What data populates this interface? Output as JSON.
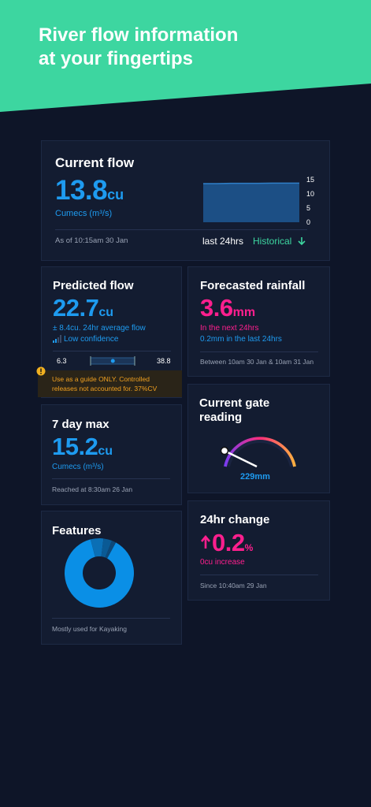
{
  "header": {
    "line1": "River flow information",
    "line2": "at your fingertips"
  },
  "current_flow": {
    "title": "Current flow",
    "value": "13.8",
    "unit": "cu",
    "unit_label": "Cumecs (m³/s)",
    "chart": {
      "type": "area",
      "ylim": [
        0,
        15
      ],
      "yticks": [
        15,
        10,
        5,
        0
      ],
      "color": "#1c4f85",
      "values": [
        13.6,
        13.6,
        13.7,
        13.7,
        13.7,
        13.8,
        13.8,
        13.8
      ]
    },
    "as_of": "As of 10:15am 30 Jan",
    "range": "last 24hrs",
    "historical": "Historical"
  },
  "predicted_flow": {
    "title": "Predicted flow",
    "value": "22.7",
    "unit": "cu",
    "average": "± 8.4cu. 24hr average flow",
    "confidence": "Low confidence",
    "range_min": "6.3",
    "range_max": "38.8",
    "warning": [
      "Use as a guide ONLY. Controlled",
      "releases not accounted for. 37%CV"
    ]
  },
  "forecasted_rainfall": {
    "title": "Forecasted rainfall",
    "value": "3.6",
    "unit": "mm",
    "next": "In the next 24hrs",
    "last": "0.2mm in the last 24hrs",
    "period": "Between 10am 30 Jan & 10am 31 Jan"
  },
  "seven_day_max": {
    "title": "7 day max",
    "value": "15.2",
    "unit": "cu",
    "unit_label": "Cumecs (m³/s)",
    "reached": "Reached at 8:30am 26 Jan"
  },
  "gate_reading": {
    "title": [
      "Current gate",
      "reading"
    ],
    "value": "229mm"
  },
  "features": {
    "title": "Features",
    "chart": {
      "type": "pie",
      "values": [
        88,
        6,
        4,
        2
      ],
      "colors": [
        "#0a8fe6",
        "#0b6fb5",
        "#0a5a95",
        "#0d4878"
      ]
    },
    "note": "Mostly used for Kayaking"
  },
  "change_24hr": {
    "title": "24hr change",
    "value": "0.2",
    "unit": "%",
    "increase": "0cu increase",
    "since": "Since 10:40am 29 Jan"
  }
}
